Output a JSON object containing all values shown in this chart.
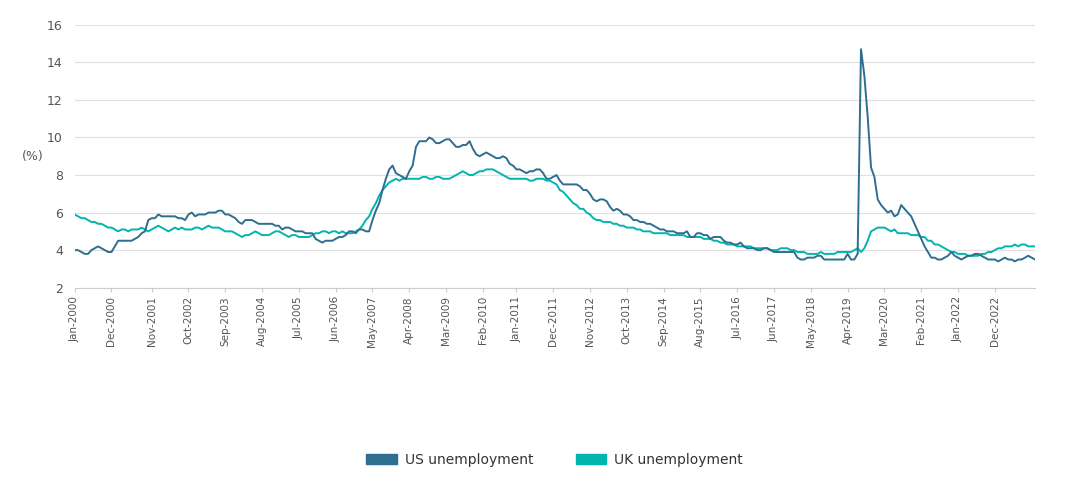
{
  "title": "",
  "ylabel": "(%)",
  "ylim": [
    2,
    16
  ],
  "yticks": [
    2,
    4,
    6,
    8,
    10,
    12,
    14,
    16
  ],
  "line_color_us": "#2E6E8E",
  "line_color_uk": "#00B5AD",
  "background_color": "#ffffff",
  "legend_labels": [
    "US unemployment",
    "UK unemployment"
  ],
  "linewidth": 1.4,
  "us_unemployment": [
    4.0,
    4.0,
    3.9,
    3.8,
    3.8,
    4.0,
    4.1,
    4.2,
    4.1,
    4.0,
    3.9,
    3.9,
    4.2,
    4.5,
    4.5,
    4.5,
    4.5,
    4.5,
    4.6,
    4.7,
    4.9,
    5.0,
    5.6,
    5.7,
    5.7,
    5.9,
    5.8,
    5.8,
    5.8,
    5.8,
    5.8,
    5.7,
    5.7,
    5.6,
    5.9,
    6.0,
    5.8,
    5.9,
    5.9,
    5.9,
    6.0,
    6.0,
    6.0,
    6.1,
    6.1,
    5.9,
    5.9,
    5.8,
    5.7,
    5.5,
    5.4,
    5.6,
    5.6,
    5.6,
    5.5,
    5.4,
    5.4,
    5.4,
    5.4,
    5.4,
    5.3,
    5.3,
    5.1,
    5.2,
    5.2,
    5.1,
    5.0,
    5.0,
    5.0,
    4.9,
    4.9,
    4.9,
    4.6,
    4.5,
    4.4,
    4.5,
    4.5,
    4.5,
    4.6,
    4.7,
    4.7,
    4.8,
    5.0,
    5.0,
    4.9,
    5.1,
    5.1,
    5.0,
    5.0,
    5.6,
    6.1,
    6.5,
    7.2,
    7.8,
    8.3,
    8.5,
    8.1,
    8.0,
    7.9,
    7.8,
    8.2,
    8.5,
    9.5,
    9.8,
    9.8,
    9.8,
    10.0,
    9.9,
    9.7,
    9.7,
    9.8,
    9.9,
    9.9,
    9.7,
    9.5,
    9.5,
    9.6,
    9.6,
    9.8,
    9.4,
    9.1,
    9.0,
    9.1,
    9.2,
    9.1,
    9.0,
    8.9,
    8.9,
    9.0,
    8.9,
    8.6,
    8.5,
    8.3,
    8.3,
    8.2,
    8.1,
    8.2,
    8.2,
    8.3,
    8.3,
    8.1,
    7.8,
    7.8,
    7.9,
    8.0,
    7.7,
    7.5,
    7.5,
    7.5,
    7.5,
    7.5,
    7.4,
    7.2,
    7.2,
    7.0,
    6.7,
    6.6,
    6.7,
    6.7,
    6.6,
    6.3,
    6.1,
    6.2,
    6.1,
    5.9,
    5.9,
    5.8,
    5.6,
    5.6,
    5.5,
    5.5,
    5.4,
    5.4,
    5.3,
    5.2,
    5.1,
    5.1,
    5.0,
    5.0,
    5.0,
    4.9,
    4.9,
    4.9,
    5.0,
    4.7,
    4.7,
    4.9,
    4.9,
    4.8,
    4.8,
    4.6,
    4.7,
    4.7,
    4.7,
    4.5,
    4.4,
    4.4,
    4.3,
    4.3,
    4.4,
    4.2,
    4.1,
    4.1,
    4.1,
    4.0,
    4.0,
    4.1,
    4.1,
    4.0,
    3.9,
    3.9,
    3.9,
    3.9,
    3.9,
    3.9,
    3.9,
    3.6,
    3.5,
    3.5,
    3.6,
    3.6,
    3.6,
    3.7,
    3.7,
    3.5,
    3.5,
    3.5,
    3.5,
    3.5,
    3.5,
    3.5,
    3.8,
    3.5,
    3.5,
    3.8,
    14.7,
    13.3,
    11.1,
    8.4,
    7.9,
    6.7,
    6.4,
    6.2,
    6.0,
    6.1,
    5.8,
    5.9,
    6.4,
    6.2,
    6.0,
    5.8,
    5.4,
    5.0,
    4.6,
    4.2,
    3.9,
    3.6,
    3.6,
    3.5,
    3.5,
    3.6,
    3.7,
    3.9,
    3.7,
    3.6,
    3.5,
    3.6,
    3.7,
    3.7,
    3.8,
    3.8,
    3.7,
    3.6,
    3.5,
    3.5,
    3.5,
    3.4,
    3.5,
    3.6,
    3.5,
    3.5,
    3.4,
    3.5,
    3.5,
    3.6,
    3.7,
    3.6,
    3.5
  ],
  "uk_unemployment": [
    5.9,
    5.8,
    5.7,
    5.7,
    5.6,
    5.5,
    5.5,
    5.4,
    5.4,
    5.3,
    5.2,
    5.2,
    5.1,
    5.0,
    5.1,
    5.1,
    5.0,
    5.1,
    5.1,
    5.1,
    5.2,
    5.1,
    5.0,
    5.1,
    5.2,
    5.3,
    5.2,
    5.1,
    5.0,
    5.1,
    5.2,
    5.1,
    5.2,
    5.1,
    5.1,
    5.1,
    5.2,
    5.2,
    5.1,
    5.2,
    5.3,
    5.2,
    5.2,
    5.2,
    5.1,
    5.0,
    5.0,
    5.0,
    4.9,
    4.8,
    4.7,
    4.8,
    4.8,
    4.9,
    5.0,
    4.9,
    4.8,
    4.8,
    4.8,
    4.9,
    5.0,
    5.0,
    4.9,
    4.8,
    4.7,
    4.8,
    4.8,
    4.7,
    4.7,
    4.7,
    4.7,
    4.8,
    4.9,
    4.9,
    5.0,
    5.0,
    4.9,
    5.0,
    5.0,
    4.9,
    5.0,
    4.9,
    4.9,
    4.9,
    5.0,
    5.1,
    5.3,
    5.6,
    5.8,
    6.2,
    6.5,
    6.9,
    7.2,
    7.4,
    7.6,
    7.7,
    7.8,
    7.7,
    7.8,
    7.8,
    7.8,
    7.8,
    7.8,
    7.8,
    7.9,
    7.9,
    7.8,
    7.8,
    7.9,
    7.9,
    7.8,
    7.8,
    7.8,
    7.9,
    8.0,
    8.1,
    8.2,
    8.1,
    8.0,
    8.0,
    8.1,
    8.2,
    8.2,
    8.3,
    8.3,
    8.3,
    8.2,
    8.1,
    8.0,
    7.9,
    7.8,
    7.8,
    7.8,
    7.8,
    7.8,
    7.8,
    7.7,
    7.7,
    7.8,
    7.8,
    7.8,
    7.7,
    7.7,
    7.6,
    7.5,
    7.2,
    7.1,
    6.9,
    6.7,
    6.5,
    6.4,
    6.2,
    6.2,
    6.0,
    5.9,
    5.7,
    5.6,
    5.6,
    5.5,
    5.5,
    5.5,
    5.4,
    5.4,
    5.3,
    5.3,
    5.2,
    5.2,
    5.2,
    5.1,
    5.1,
    5.0,
    5.0,
    5.0,
    4.9,
    4.9,
    4.9,
    4.9,
    4.9,
    4.8,
    4.8,
    4.8,
    4.8,
    4.8,
    4.7,
    4.7,
    4.7,
    4.7,
    4.7,
    4.6,
    4.6,
    4.6,
    4.5,
    4.5,
    4.4,
    4.4,
    4.3,
    4.3,
    4.3,
    4.2,
    4.2,
    4.2,
    4.2,
    4.2,
    4.1,
    4.1,
    4.1,
    4.1,
    4.1,
    4.0,
    4.0,
    4.0,
    4.1,
    4.1,
    4.1,
    4.0,
    4.0,
    3.9,
    3.9,
    3.9,
    3.8,
    3.8,
    3.8,
    3.8,
    3.9,
    3.8,
    3.8,
    3.8,
    3.8,
    3.9,
    3.9,
    3.9,
    3.9,
    3.9,
    4.0,
    4.1,
    3.9,
    4.1,
    4.5,
    5.0,
    5.1,
    5.2,
    5.2,
    5.2,
    5.1,
    5.0,
    5.1,
    4.9,
    4.9,
    4.9,
    4.9,
    4.8,
    4.8,
    4.8,
    4.7,
    4.7,
    4.5,
    4.5,
    4.3,
    4.3,
    4.2,
    4.1,
    4.0,
    3.9,
    3.9,
    3.8,
    3.8,
    3.8,
    3.7,
    3.7,
    3.7,
    3.7,
    3.8,
    3.8,
    3.9,
    3.9,
    4.0,
    4.1,
    4.1,
    4.2,
    4.2,
    4.2,
    4.3,
    4.2,
    4.3,
    4.3,
    4.2,
    4.2,
    4.2
  ],
  "x_tick_labels": [
    "Jan-2000",
    "Dec-2000",
    "Nov-2001",
    "Oct-2002",
    "Sep-2003",
    "Aug-2004",
    "Jul-2005",
    "Jun-2006",
    "May-2007",
    "Apr-2008",
    "Mar-2009",
    "Feb-2010",
    "Jan-2011",
    "Dec-2011",
    "Nov-2012",
    "Oct-2013",
    "Sep-2014",
    "Aug-2015",
    "Jul-2016",
    "Jun-2017",
    "May-2018",
    "Apr-2019",
    "Mar-2020",
    "Feb-2021",
    "Jan-2022",
    "Dec-2022"
  ],
  "x_tick_indices": [
    0,
    11,
    23,
    34,
    45,
    56,
    67,
    78,
    89,
    100,
    111,
    122,
    132,
    143,
    154,
    165,
    176,
    187,
    198,
    209,
    220,
    231,
    242,
    253,
    264,
    275
  ]
}
